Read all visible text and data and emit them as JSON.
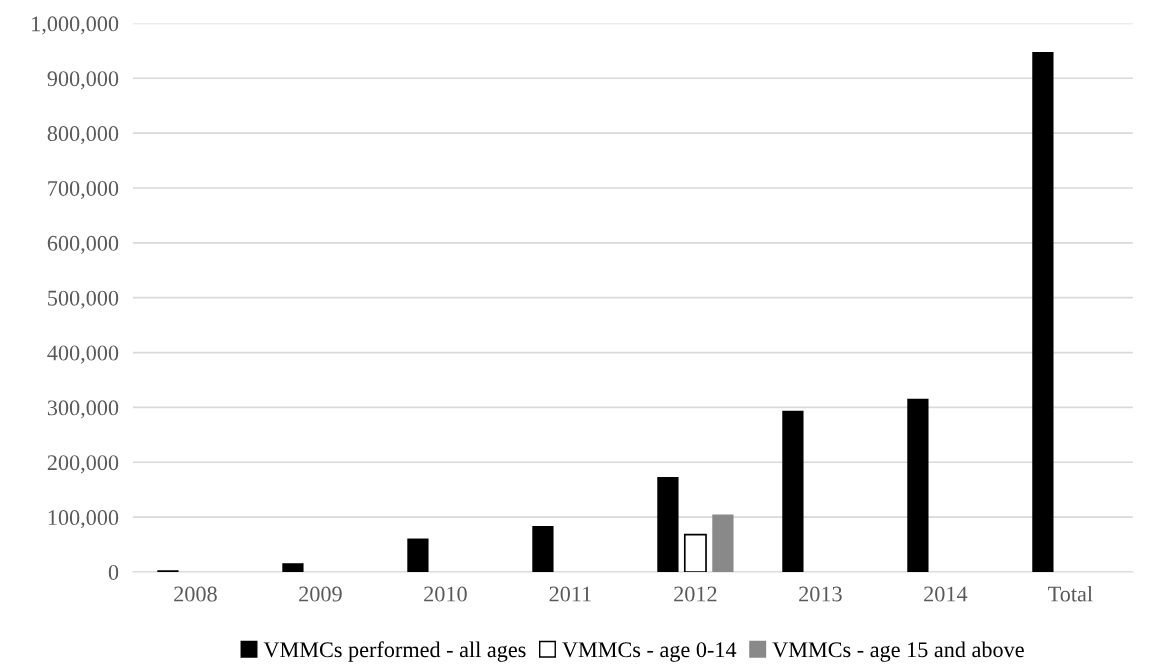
{
  "chart_data": {
    "type": "bar",
    "categories": [
      "2008",
      "2009",
      "2010",
      "2011",
      "2012",
      "2013",
      "2014",
      "Total"
    ],
    "series": [
      {
        "name": "VMMCs performed - all ages",
        "color": "#000000",
        "values": [
          3000,
          16000,
          61000,
          84000,
          173000,
          294000,
          316000,
          948000
        ]
      },
      {
        "name": "VMMCs - age 0-14",
        "color": "#ffffff",
        "values": [
          null,
          null,
          null,
          null,
          68000,
          null,
          null,
          null
        ]
      },
      {
        "name": "VMMCs - age 15 and above",
        "color": "#898989",
        "values": [
          null,
          null,
          null,
          null,
          105000,
          null,
          null,
          null
        ]
      }
    ],
    "ylim": [
      0,
      1000000
    ],
    "yticks": [
      {
        "value": 0,
        "label": "0"
      },
      {
        "value": 100000,
        "label": "100,000"
      },
      {
        "value": 200000,
        "label": "200,000"
      },
      {
        "value": 300000,
        "label": "300,000"
      },
      {
        "value": 400000,
        "label": "400,000"
      },
      {
        "value": 500000,
        "label": "500,000"
      },
      {
        "value": 600000,
        "label": "600,000"
      },
      {
        "value": 700000,
        "label": "700,000"
      },
      {
        "value": 800000,
        "label": "800,000"
      },
      {
        "value": 900000,
        "label": "900,000"
      },
      {
        "value": 1000000,
        "label": "1,000,000"
      }
    ],
    "grid": "y",
    "legend": "bottom"
  }
}
